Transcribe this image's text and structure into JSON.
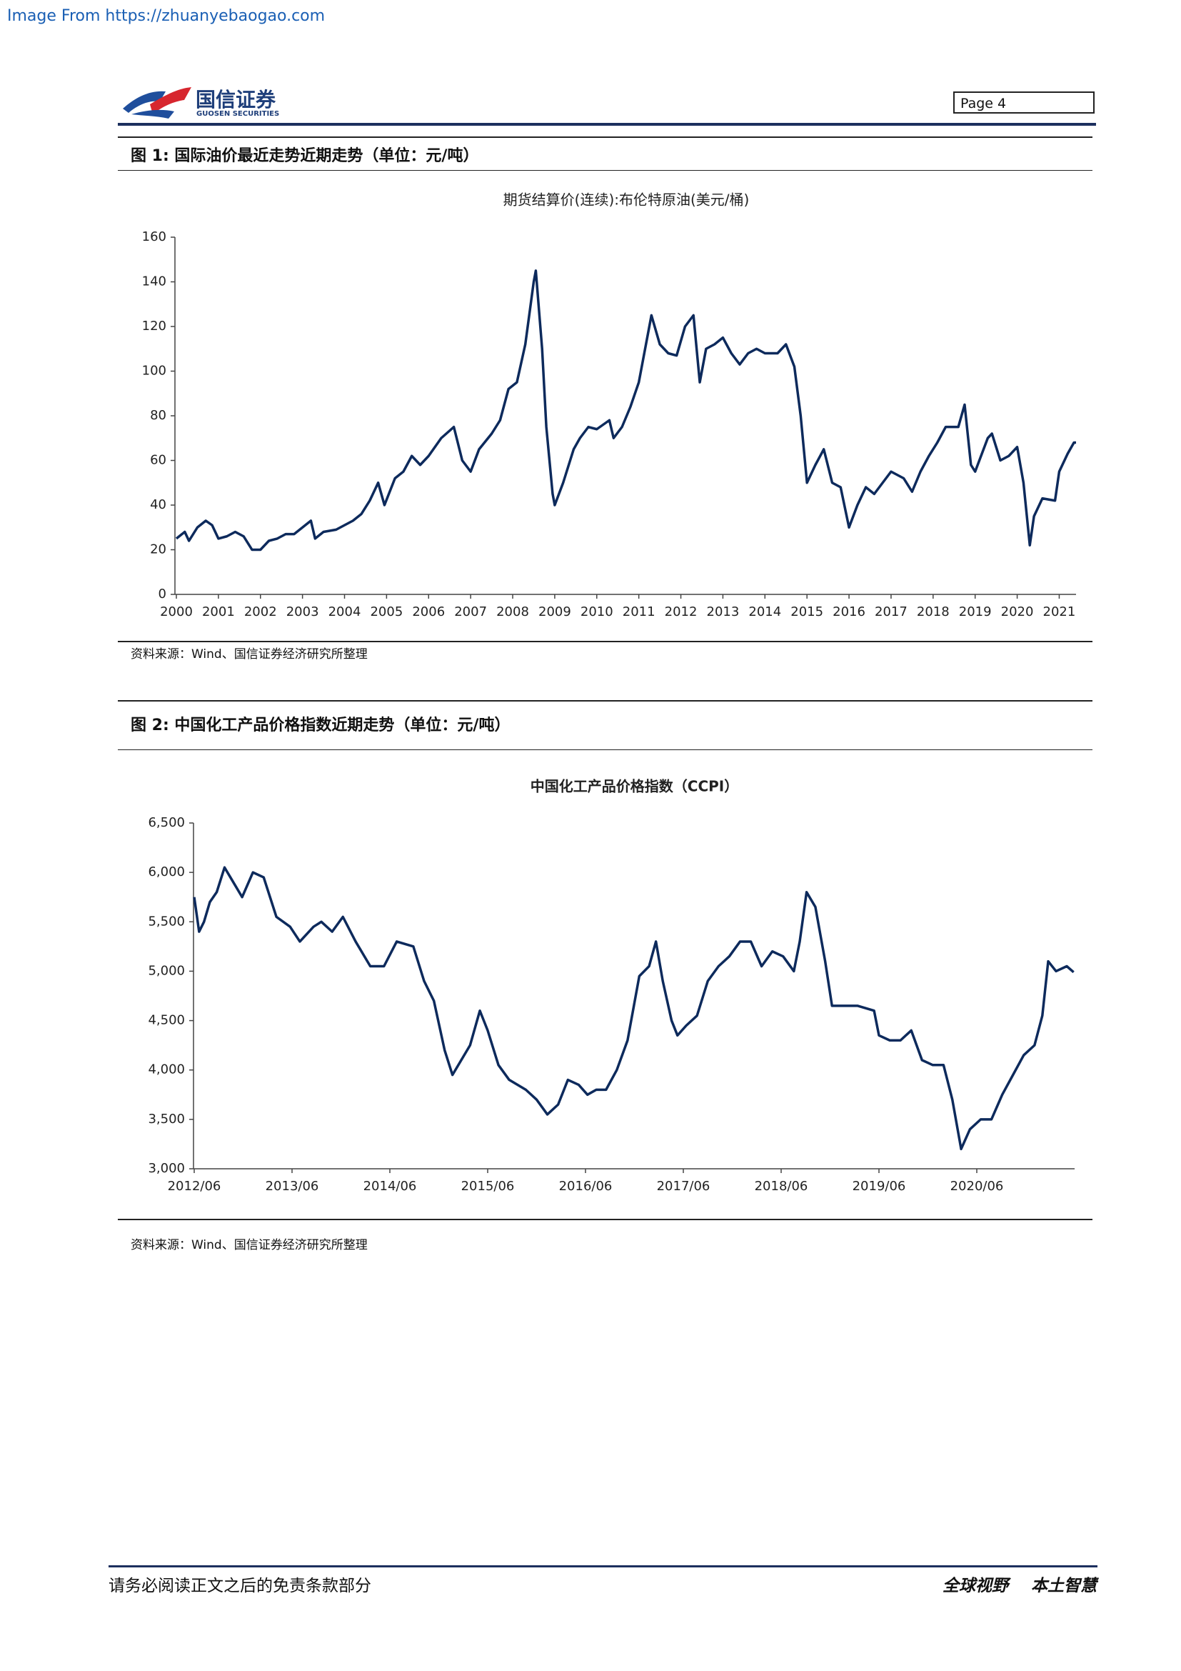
{
  "header": {
    "source_link": "Image From https://zhuanyebaogao.com",
    "logo_cn": "国信证券",
    "logo_en": "GUOSEN SECURITIES",
    "page": "Page  4"
  },
  "captions": [
    "图  1:  国际油价最近走势近期走势（单位：元/吨）",
    "图  2:  中国化工产品价格指数近期走势（单位：元/吨）"
  ],
  "sources": [
    "资料来源：Wind、国信证券经济研究所整理",
    "资料来源：Wind、国信证券经济研究所整理"
  ],
  "footer": {
    "left": "请务必阅读正文之后的免责条款部分",
    "right": "全球视野    本土智慧"
  },
  "chart_data": [
    {
      "type": "line",
      "title": "期货结算价(连续):布伦特原油(美元/桶)",
      "grid": false,
      "x": [
        2000.0,
        2000.2,
        2000.3,
        2000.5,
        2000.7,
        2000.85,
        2001.0,
        2001.2,
        2001.4,
        2001.6,
        2001.8,
        2002.0,
        2002.2,
        2002.4,
        2002.6,
        2002.8,
        2003.0,
        2003.2,
        2003.3,
        2003.5,
        2003.8,
        2004.0,
        2004.2,
        2004.4,
        2004.6,
        2004.8,
        2004.95,
        2005.2,
        2005.4,
        2005.6,
        2005.8,
        2006.0,
        2006.3,
        2006.6,
        2006.8,
        2007.0,
        2007.2,
        2007.5,
        2007.7,
        2007.9,
        2008.1,
        2008.3,
        2008.5,
        2008.55,
        2008.7,
        2008.8,
        2008.95,
        2009.0,
        2009.2,
        2009.45,
        2009.6,
        2009.8,
        2010.0,
        2010.3,
        2010.4,
        2010.6,
        2010.8,
        2011.0,
        2011.2,
        2011.3,
        2011.5,
        2011.7,
        2011.9,
        2012.1,
        2012.3,
        2012.45,
        2012.6,
        2012.8,
        2013.0,
        2013.2,
        2013.4,
        2013.6,
        2013.8,
        2014.0,
        2014.3,
        2014.5,
        2014.7,
        2014.85,
        2015.0,
        2015.2,
        2015.4,
        2015.6,
        2015.8,
        2016.0,
        2016.2,
        2016.4,
        2016.6,
        2016.8,
        2017.0,
        2017.3,
        2017.5,
        2017.7,
        2017.9,
        2018.1,
        2018.3,
        2018.6,
        2018.75,
        2018.9,
        2019.0,
        2019.3,
        2019.4,
        2019.6,
        2019.8,
        2020.0,
        2020.15,
        2020.3,
        2020.4,
        2020.6,
        2020.9,
        2021.0,
        2021.2,
        2021.35,
        2021.4
      ],
      "series": [
        {
          "color": "#0d2a5c",
          "values": [
            25,
            28,
            24,
            30,
            33,
            31,
            25,
            26,
            28,
            26,
            20,
            20,
            24,
            25,
            27,
            27,
            30,
            33,
            25,
            28,
            29,
            31,
            33,
            36,
            42,
            50,
            40,
            52,
            55,
            62,
            58,
            62,
            70,
            75,
            60,
            55,
            65,
            72,
            78,
            92,
            95,
            112,
            140,
            145,
            110,
            75,
            45,
            40,
            50,
            65,
            70,
            75,
            74,
            78,
            70,
            75,
            84,
            95,
            115,
            125,
            112,
            108,
            107,
            120,
            125,
            95,
            110,
            112,
            115,
            108,
            103,
            108,
            110,
            108,
            108,
            112,
            102,
            80,
            50,
            58,
            65,
            50,
            48,
            30,
            40,
            48,
            45,
            50,
            55,
            52,
            46,
            55,
            62,
            68,
            75,
            75,
            85,
            58,
            55,
            70,
            72,
            60,
            62,
            66,
            50,
            22,
            35,
            43,
            42,
            55,
            63,
            68,
            68
          ]
        }
      ],
      "xlim": [
        2000,
        2021.4
      ],
      "xticks": [
        2000,
        2001,
        2002,
        2003,
        2004,
        2005,
        2006,
        2007,
        2008,
        2009,
        2010,
        2011,
        2012,
        2013,
        2014,
        2015,
        2016,
        2017,
        2018,
        2019,
        2020,
        2021
      ],
      "ylim": [
        0,
        160
      ],
      "yticks": [
        0,
        20,
        40,
        60,
        80,
        100,
        120,
        140,
        160
      ]
    },
    {
      "type": "line",
      "title": "中国化工产品价格指数（CCPI）",
      "grid": false,
      "x": [
        2012.5,
        2012.55,
        2012.6,
        2012.66,
        2012.73,
        2012.81,
        2012.87,
        2012.99,
        2013.1,
        2013.21,
        2013.34,
        2013.48,
        2013.58,
        2013.72,
        2013.8,
        2013.91,
        2014.02,
        2014.15,
        2014.3,
        2014.44,
        2014.57,
        2014.74,
        2014.85,
        2014.95,
        2015.06,
        2015.14,
        2015.23,
        2015.32,
        2015.42,
        2015.5,
        2015.61,
        2015.72,
        2015.89,
        2016.0,
        2016.11,
        2016.22,
        2016.32,
        2016.43,
        2016.52,
        2016.61,
        2016.71,
        2016.82,
        2016.93,
        2017.05,
        2017.15,
        2017.22,
        2017.29,
        2017.38,
        2017.44,
        2017.53,
        2017.64,
        2017.75,
        2017.86,
        2017.97,
        2018.08,
        2018.19,
        2018.3,
        2018.41,
        2018.52,
        2018.63,
        2018.69,
        2018.76,
        2018.85,
        2018.95,
        2019.02,
        2019.12,
        2019.28,
        2019.45,
        2019.5,
        2019.61,
        2019.72,
        2019.83,
        2019.94,
        2020.05,
        2020.16,
        2020.25,
        2020.34,
        2020.43,
        2020.54,
        2020.65,
        2020.76,
        2020.87,
        2020.98,
        2021.09,
        2021.17,
        2021.23,
        2021.31,
        2021.42,
        2021.49
      ],
      "series": [
        {
          "color": "#0d2a5c",
          "values": [
            5750,
            5400,
            5500,
            5700,
            5800,
            6050,
            5950,
            5750,
            6000,
            5950,
            5550,
            5450,
            5300,
            5450,
            5500,
            5400,
            5550,
            5300,
            5050,
            5050,
            5300,
            5250,
            4900,
            4700,
            4200,
            3950,
            4100,
            4250,
            4600,
            4400,
            4050,
            3900,
            3800,
            3700,
            3550,
            3650,
            3900,
            3850,
            3750,
            3800,
            3800,
            4000,
            4300,
            4950,
            5050,
            5300,
            4900,
            4500,
            4350,
            4450,
            4550,
            4900,
            5050,
            5150,
            5300,
            5300,
            5050,
            5200,
            5150,
            5000,
            5300,
            5800,
            5650,
            5100,
            4650,
            4650,
            4650,
            4600,
            4350,
            4300,
            4300,
            4400,
            4100,
            4050,
            4050,
            3700,
            3200,
            3400,
            3500,
            3500,
            3750,
            3950,
            4150,
            4250,
            4550,
            5100,
            5000,
            5050,
            4990
          ]
        }
      ],
      "xlim": [
        2012.5,
        2021.5
      ],
      "xticks": [
        {
          "value": 2012.5,
          "label": "2012/06"
        },
        {
          "value": 2013.5,
          "label": "2013/06"
        },
        {
          "value": 2014.5,
          "label": "2014/06"
        },
        {
          "value": 2015.5,
          "label": "2015/06"
        },
        {
          "value": 2016.5,
          "label": "2016/06"
        },
        {
          "value": 2017.5,
          "label": "2017/06"
        },
        {
          "value": 2018.5,
          "label": "2018/06"
        },
        {
          "value": 2019.5,
          "label": "2019/06"
        },
        {
          "value": 2020.5,
          "label": "2020/06"
        }
      ],
      "ylim": [
        3000,
        6500
      ],
      "yticks": [
        {
          "value": 3000,
          "label": "3,000"
        },
        {
          "value": 3500,
          "label": "3,500"
        },
        {
          "value": 4000,
          "label": "4,000"
        },
        {
          "value": 4500,
          "label": "4,500"
        },
        {
          "value": 5000,
          "label": "5,000"
        },
        {
          "value": 5500,
          "label": "5,500"
        },
        {
          "value": 6000,
          "label": "6,000"
        },
        {
          "value": 6500,
          "label": "6,500"
        }
      ]
    }
  ]
}
